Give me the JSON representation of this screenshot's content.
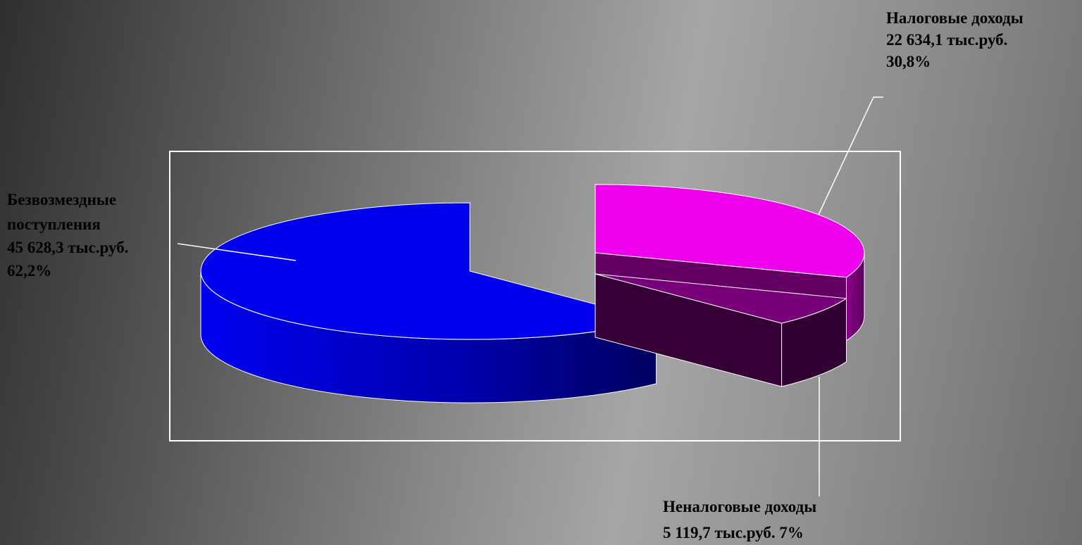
{
  "chart_data": {
    "type": "pie",
    "title": "",
    "unit": "тыс.руб.",
    "slices": [
      {
        "label_lines": [
          "Налоговые доходы",
          "22 634,1 тыс.руб.",
          "30,8%"
        ],
        "value": 22634.1,
        "percent": 30.8,
        "color": "#ee00ee"
      },
      {
        "label_lines": [
          "Неналоговые доходы",
          "5 119,7 тыс.руб.  7%"
        ],
        "value": 5119.7,
        "percent": 7,
        "color": "#780078"
      },
      {
        "label_lines": [
          "Безвозмездные",
          "поступления",
          "45 628,3 тыс.руб.",
          "62,2%"
        ],
        "value": 45628.3,
        "percent": 62.2,
        "color": "#0000ee"
      }
    ],
    "style": "3d-exploded",
    "legend": "none",
    "colors": {
      "border": "#ffffff",
      "label_text": "#000000"
    }
  }
}
